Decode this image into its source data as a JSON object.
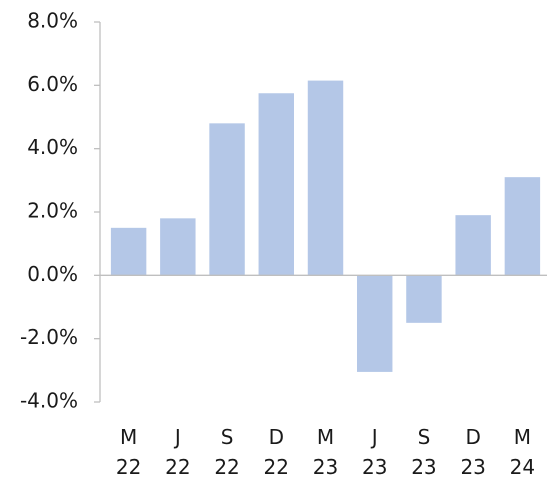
{
  "chart_data": {
    "type": "bar",
    "categories": [
      [
        "M",
        "22"
      ],
      [
        "J",
        "22"
      ],
      [
        "S",
        "22"
      ],
      [
        "D",
        "22"
      ],
      [
        "M",
        "23"
      ],
      [
        "J",
        "23"
      ],
      [
        "S",
        "23"
      ],
      [
        "D",
        "23"
      ],
      [
        "M",
        "24"
      ]
    ],
    "values": [
      1.5,
      1.8,
      4.8,
      5.75,
      6.15,
      -3.05,
      -1.5,
      1.9,
      3.1
    ],
    "color": "#b4c7e7",
    "ylim": [
      -4,
      8
    ],
    "yticks": [
      {
        "value": -4,
        "label": "-4.0%"
      },
      {
        "value": -2,
        "label": "-2.0%"
      },
      {
        "value": 0,
        "label": "0.0%"
      },
      {
        "value": 2,
        "label": "2.0%"
      },
      {
        "value": 4,
        "label": "4.0%"
      },
      {
        "value": 6,
        "label": "6.0%"
      },
      {
        "value": 8,
        "label": "8.0%"
      }
    ]
  }
}
